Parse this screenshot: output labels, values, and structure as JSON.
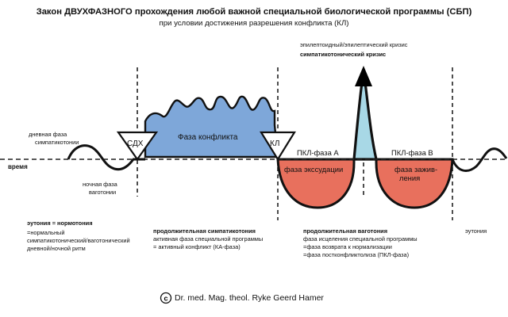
{
  "title": "Закон ДВУХФАЗНОГО прохождения любой важной специальной биологической программы (СБП)",
  "subtitle": "при условии достижения разрешения конфликта (КЛ)",
  "crisis": {
    "line1": "эпилептоидный/эпилептический кризис",
    "line2": "симпатикотонический кризис"
  },
  "day_phase": {
    "line1": "дневная фаза",
    "line2": "симпатикотонии"
  },
  "night_phase": {
    "line1": "ночная фаза",
    "line2": "ваготонии"
  },
  "time_label": "время",
  "markers": {
    "sdh": "СДХ",
    "kl": "КЛ"
  },
  "phase_labels": {
    "conflict": "Фаза конфликта",
    "pcl_a": "ПКЛ-фаза А",
    "pcl_b": "ПКЛ-фаза В",
    "exudation": "фаза экссудации",
    "healing_1": "фаза зажив-",
    "healing_2": "ления"
  },
  "bottom": {
    "col1": {
      "l1": "эутония = нормотония",
      "l2": "=нормальный",
      "l3": "симпатикотонический/ваготонический",
      "l4": "дневной/ночной ритм"
    },
    "col2": {
      "l1": "продолжительная симпатикотония",
      "l2": "активная фаза специальной программы",
      "l3": "= активный конфликт (КА-фаза)"
    },
    "col3": {
      "l1": "продолжительная ваготония",
      "l2": "фаза исцеления специальной программы",
      "l3": "=фаза возврата к нормализации",
      "l4": "=фаза постконфликтолиза (ПКЛ-фаза)"
    },
    "col4": {
      "l1": "эутония"
    }
  },
  "copyright": "Dr. med. Mag. theol. Ryke Geerd Hamer",
  "colors": {
    "conflict_fill": "#7ea7d9",
    "pcl_fill": "#e8705d",
    "crisis_fill": "#a8d8e6",
    "line": "#111111"
  }
}
